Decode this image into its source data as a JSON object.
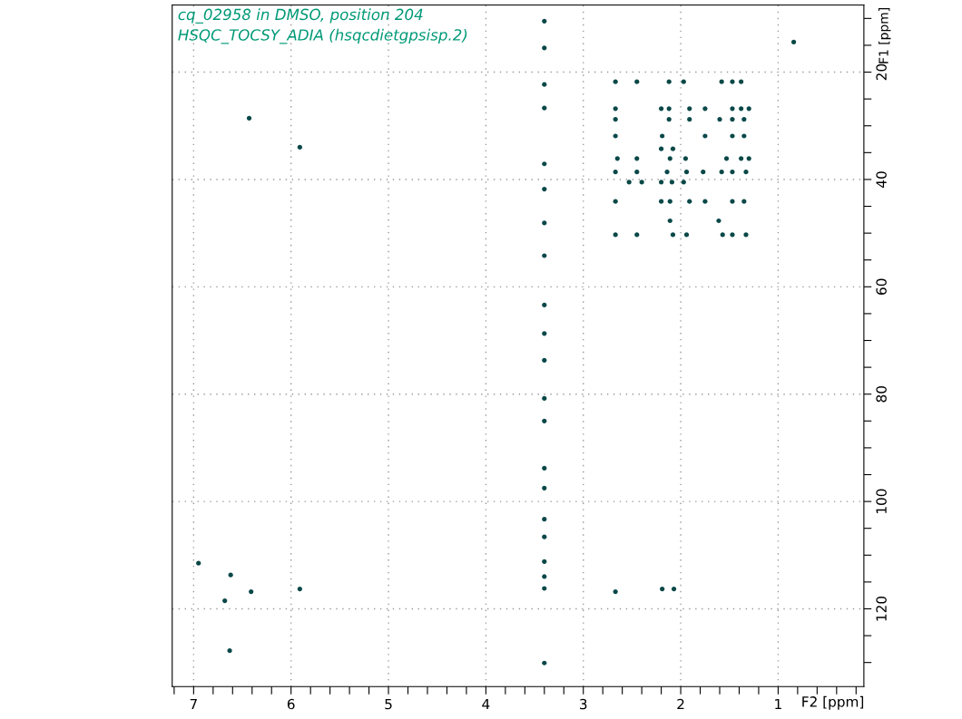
{
  "chart_data": {
    "type": "scatter",
    "annotations": [
      "cq_02958 in DMSO, position 204",
      "HSQC_TOCSY_ADIA (hsqcdietgpsisp.2)"
    ],
    "xlabel": "F2 [ppm]",
    "ylabel": "F1 [ppm]",
    "xlim": [
      7.22,
      0.12
    ],
    "ylim": [
      134.5,
      7.5
    ],
    "xticks": [
      {
        "value": 7.2,
        "label": null
      },
      7,
      {
        "value": 6.8,
        "label": null
      },
      {
        "value": 6.6,
        "label": null
      },
      {
        "value": 6.4,
        "label": null
      },
      {
        "value": 6.2,
        "label": null
      },
      6,
      {
        "value": 5.8,
        "label": null
      },
      {
        "value": 5.6,
        "label": null
      },
      {
        "value": 5.4,
        "label": null
      },
      {
        "value": 5.2,
        "label": null
      },
      5,
      {
        "value": 4.8,
        "label": null
      },
      {
        "value": 4.6,
        "label": null
      },
      {
        "value": 4.4,
        "label": null
      },
      {
        "value": 4.2,
        "label": null
      },
      4,
      {
        "value": 3.8,
        "label": null
      },
      {
        "value": 3.6,
        "label": null
      },
      {
        "value": 3.4,
        "label": null
      },
      {
        "value": 3.2,
        "label": null
      },
      3,
      {
        "value": 2.8,
        "label": null
      },
      {
        "value": 2.6,
        "label": null
      },
      {
        "value": 2.4,
        "label": null
      },
      {
        "value": 2.2,
        "label": null
      },
      2,
      {
        "value": 1.8,
        "label": null
      },
      {
        "value": 1.6,
        "label": null
      },
      {
        "value": 1.4,
        "label": null
      },
      {
        "value": 1.2,
        "label": null
      },
      1,
      {
        "value": 0.8,
        "label": null
      },
      {
        "value": 0.6,
        "label": null
      },
      {
        "value": 0.4,
        "label": null
      },
      {
        "value": 0.2,
        "label": null
      }
    ],
    "yticks": [
      {
        "value": 10,
        "label": null
      },
      {
        "value": 15,
        "label": null
      },
      20,
      {
        "value": 25,
        "label": null
      },
      {
        "value": 30,
        "label": null
      },
      {
        "value": 35,
        "label": null
      },
      40,
      {
        "value": 45,
        "label": null
      },
      {
        "value": 50,
        "label": null
      },
      {
        "value": 55,
        "label": null
      },
      60,
      {
        "value": 65,
        "label": null
      },
      {
        "value": 70,
        "label": null
      },
      {
        "value": 75,
        "label": null
      },
      80,
      {
        "value": 85,
        "label": null
      },
      {
        "value": 90,
        "label": null
      },
      {
        "value": 95,
        "label": null
      },
      100,
      {
        "value": 105,
        "label": null
      },
      {
        "value": 110,
        "label": null
      },
      {
        "value": 115,
        "label": null
      },
      120,
      {
        "value": 125,
        "label": null
      },
      {
        "value": 130,
        "label": null
      }
    ],
    "grid": true,
    "marker": "circle",
    "series": [
      {
        "color": "#0a4848",
        "x": [
          2.67,
          2.45,
          2.12,
          1.97,
          1.58,
          1.47,
          1.38,
          2.67,
          2.2,
          2.12,
          1.91,
          1.75,
          1.47,
          1.38,
          1.3,
          2.67,
          2.12,
          1.91,
          1.6,
          1.47,
          1.35,
          2.67,
          2.19,
          1.75,
          1.47,
          1.35,
          2.2,
          2.08,
          2.65,
          2.45,
          2.11,
          1.95,
          1.53,
          1.38,
          1.3,
          2.67,
          2.45,
          2.14,
          1.94,
          1.77,
          1.58,
          1.47,
          1.33,
          2.53,
          2.4,
          2.2,
          2.09,
          1.97,
          2.67,
          2.2,
          2.11,
          1.91,
          1.75,
          1.47,
          1.35,
          2.11,
          1.61,
          2.67,
          2.45,
          2.08,
          1.94,
          1.57,
          1.47,
          1.33,
          0.84,
          6.43,
          5.91,
          6.95,
          6.62,
          6.41,
          5.91,
          6.68,
          6.63,
          2.67,
          2.19,
          2.07,
          3.4,
          3.4,
          3.4,
          3.4,
          3.4,
          3.4,
          3.4,
          3.4,
          3.4,
          3.4,
          3.4,
          3.4,
          3.4,
          3.4,
          3.4,
          3.4,
          3.4,
          3.4,
          3.4,
          3.4,
          3.4
        ],
        "values": [
          21.8,
          21.8,
          21.8,
          21.8,
          21.8,
          21.8,
          21.8,
          26.8,
          26.8,
          26.8,
          26.8,
          26.8,
          26.8,
          26.8,
          26.8,
          28.8,
          28.8,
          28.8,
          28.8,
          28.8,
          28.8,
          31.9,
          31.9,
          31.9,
          31.9,
          31.9,
          34.3,
          34.3,
          36.1,
          36.1,
          36.1,
          36.1,
          36.1,
          36.1,
          36.1,
          38.6,
          38.6,
          38.6,
          38.6,
          38.6,
          38.6,
          38.6,
          38.6,
          40.5,
          40.5,
          40.5,
          40.5,
          40.5,
          44.1,
          44.1,
          44.1,
          44.1,
          44.1,
          44.1,
          44.1,
          47.7,
          47.7,
          50.3,
          50.3,
          50.3,
          50.3,
          50.3,
          50.3,
          50.3,
          14.4,
          28.6,
          34.0,
          111.5,
          113.7,
          116.8,
          116.3,
          118.5,
          127.8,
          116.8,
          116.3,
          116.3,
          10.5,
          15.5,
          22.3,
          26.7,
          37.1,
          41.8,
          48.1,
          54.2,
          63.4,
          68.7,
          73.7,
          80.8,
          85.0,
          93.8,
          97.5,
          103.3,
          106.6,
          111.2,
          114.0,
          116.2,
          130.1
        ]
      }
    ]
  }
}
